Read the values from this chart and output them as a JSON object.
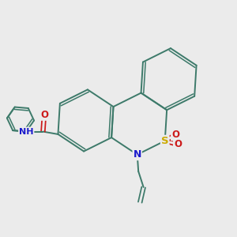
{
  "background_color": "#ebebeb",
  "bond_color": "#3d7a6a",
  "bond_width": 1.4,
  "atom_colors": {
    "N": "#1a1acc",
    "S": "#ccaa00",
    "O": "#cc1a1a",
    "C": "#3d7a6a"
  },
  "figsize": [
    3.0,
    3.0
  ],
  "dpi": 100
}
